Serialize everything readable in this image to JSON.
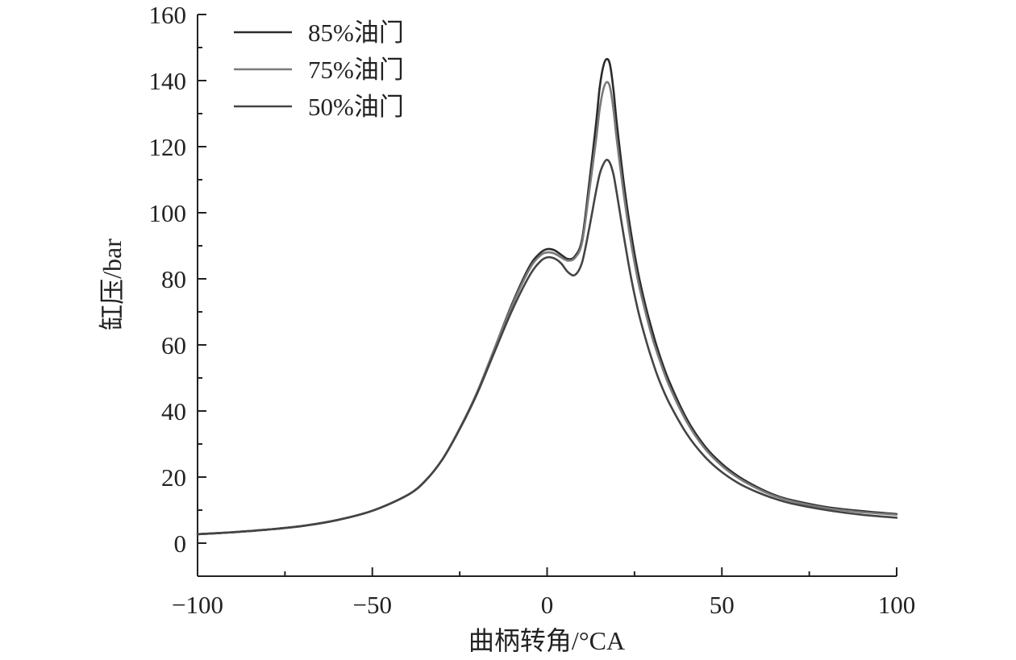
{
  "chart_data": {
    "type": "line",
    "title": "",
    "xlabel": "曲柄转角/°CA",
    "ylabel": "缸压/bar",
    "xlim": [
      -100,
      100
    ],
    "ylim": [
      -10,
      160
    ],
    "xticks": [
      -100,
      -50,
      0,
      50,
      100
    ],
    "xtick_labels": [
      "−100",
      "−50",
      "0",
      "50",
      "100"
    ],
    "yticks": [
      0,
      20,
      40,
      60,
      80,
      100,
      120,
      140,
      160
    ],
    "ytick_labels": [
      "0",
      "20",
      "40",
      "60",
      "80",
      "100",
      "120",
      "140",
      "160"
    ],
    "grid": false,
    "legend_position": "top-left",
    "series": [
      {
        "name": "85%油门",
        "color": "#2b2b2b",
        "x": [
          -100,
          -90,
          -80,
          -70,
          -60,
          -50,
          -40,
          -35,
          -30,
          -25,
          -20,
          -15,
          -10,
          -5,
          -2,
          0,
          2,
          4,
          6,
          8,
          10,
          12,
          14,
          15,
          16,
          17,
          18,
          19,
          20,
          22,
          24,
          26,
          28,
          30,
          32,
          35,
          40,
          45,
          50,
          55,
          60,
          65,
          70,
          80,
          90,
          100
        ],
        "y": [
          2.7,
          3.3,
          4.1,
          5.2,
          7.0,
          9.8,
          14.5,
          18.7,
          25.3,
          34.7,
          45.7,
          59.0,
          72.5,
          83.8,
          87.8,
          89.0,
          88.7,
          87.3,
          86.0,
          86.9,
          92.0,
          108.5,
          127.0,
          137.5,
          144.0,
          146.5,
          144.8,
          137.0,
          126.5,
          108.5,
          94.0,
          82.0,
          72.5,
          64.5,
          57.5,
          48.8,
          37.5,
          29.5,
          24.0,
          20.0,
          17.0,
          14.6,
          13.0,
          10.9,
          9.7,
          8.8
        ]
      },
      {
        "name": "75%油门",
        "color": "#7a7a7a",
        "x": [
          -100,
          -90,
          -80,
          -70,
          -60,
          -50,
          -40,
          -35,
          -30,
          -25,
          -20,
          -15,
          -10,
          -5,
          -2,
          0,
          2,
          4,
          6,
          8,
          10,
          12,
          14,
          15,
          16,
          17,
          18,
          19,
          20,
          22,
          24,
          26,
          28,
          30,
          32,
          35,
          40,
          45,
          50,
          55,
          60,
          65,
          70,
          80,
          90,
          100
        ],
        "y": [
          2.7,
          3.3,
          4.1,
          5.2,
          7.0,
          9.8,
          14.5,
          18.7,
          25.3,
          34.7,
          45.7,
          59.0,
          72.0,
          83.0,
          87.0,
          88.0,
          87.7,
          86.5,
          85.5,
          86.4,
          91.0,
          106.0,
          122.0,
          131.0,
          137.0,
          139.5,
          138.0,
          131.0,
          121.5,
          105.0,
          91.0,
          79.5,
          70.5,
          62.5,
          56.0,
          47.5,
          36.6,
          28.8,
          23.4,
          19.5,
          16.6,
          14.3,
          12.7,
          10.6,
          9.4,
          8.6
        ]
      },
      {
        "name": "50%油门",
        "color": "#444444",
        "x": [
          -100,
          -90,
          -80,
          -70,
          -60,
          -50,
          -40,
          -35,
          -30,
          -25,
          -20,
          -15,
          -10,
          -5,
          -2,
          0,
          2,
          4,
          6,
          8,
          10,
          12,
          14,
          15,
          16,
          17,
          18,
          19,
          20,
          22,
          24,
          26,
          28,
          30,
          32,
          35,
          40,
          45,
          50,
          55,
          60,
          65,
          70,
          80,
          90,
          100
        ],
        "y": [
          2.7,
          3.3,
          4.1,
          5.2,
          7.0,
          9.8,
          14.5,
          18.7,
          25.3,
          34.5,
          45.3,
          58.0,
          70.5,
          81.0,
          85.2,
          86.5,
          86.2,
          84.7,
          82.0,
          81.2,
          85.0,
          95.0,
          106.5,
          111.5,
          114.5,
          116.0,
          115.0,
          111.5,
          105.5,
          92.5,
          80.5,
          70.5,
          62.5,
          55.5,
          49.5,
          42.3,
          33.0,
          26.3,
          21.5,
          18.0,
          15.5,
          13.5,
          12.0,
          10.0,
          8.6,
          7.7
        ]
      }
    ]
  }
}
